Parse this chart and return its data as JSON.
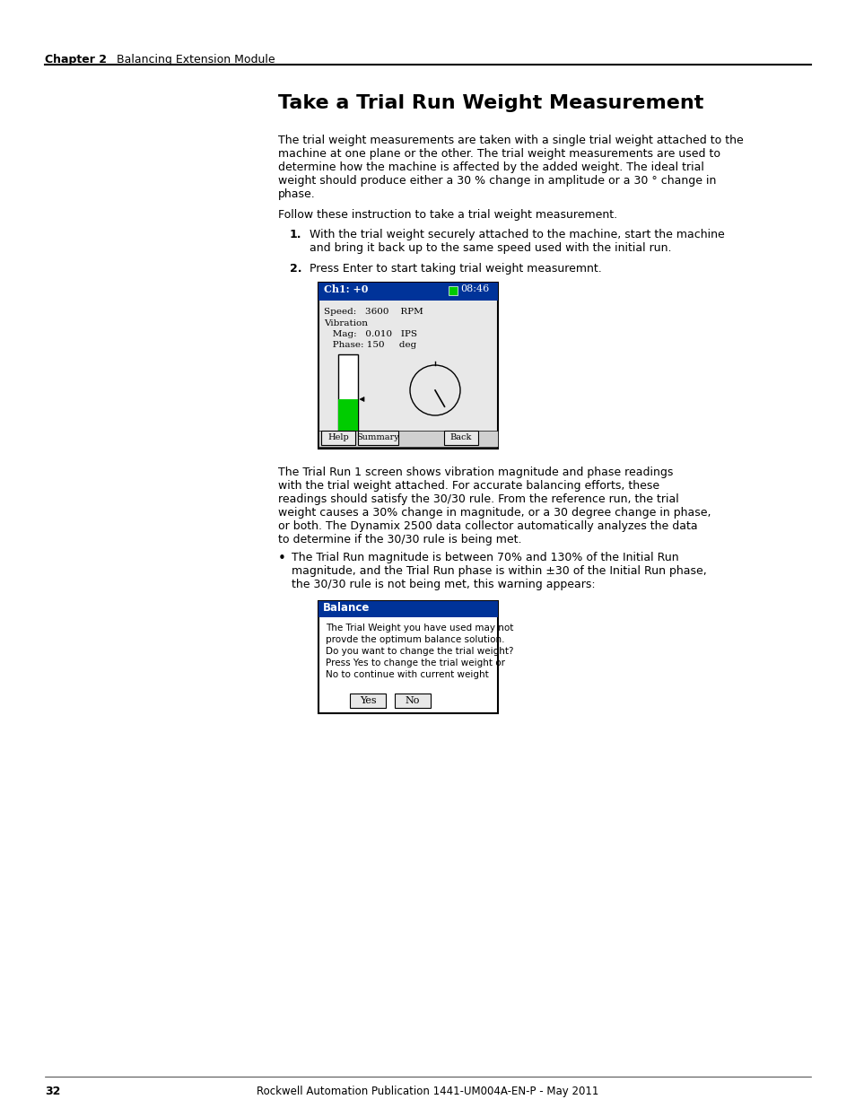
{
  "page_bg": "#ffffff",
  "chapter_label": "Chapter 2",
  "chapter_title": "Balancing Extension Module",
  "section_title": "Take a Trial Run Weight Measurement",
  "body_text_1": "The trial weight measurements are taken with a single trial weight attached to the\nmachine at one plane or the other. The trial weight measurements are used to\ndetermine how the machine is affected by the added weight. The ideal trial\nweight should produce either a 30 % change in amplitude or a 30 ° change in\nphase.",
  "body_text_2": "Follow these instruction to take a trial weight measurement.",
  "step1": "With the trial weight securely attached to the machine, start the machine\nand bring it back up to the same speed used with the initial run.",
  "step2": "Press Enter to start taking trial weight measuremnt.",
  "screen1_title": "Ch1: +0",
  "screen1_time": "08:46",
  "screen1_speed": "Speed:   3600    RPM",
  "screen1_vib": "Vibration",
  "screen1_mag": "   Mag:   0.010   IPS",
  "screen1_phase": "   Phase: 150     deg",
  "screen1_btn1": "Help",
  "screen1_btn2": "Summary",
  "screen1_btn3": "Back",
  "body_text_3": "The Trial Run 1 screen shows vibration magnitude and phase readings\nwith the trial weight attached. For accurate balancing efforts, these\nreadings should satisfy the 30/30 rule. From the reference run, the trial\nweight causes a 30% change in magnitude, or a 30 degree change in phase,\nor both. The Dynamix 2500 data collector automatically analyzes the data\nto determine if the 30/30 rule is being met.",
  "bullet_text": "The Trial Run magnitude is between 70% and 130% of the Initial Run\nmagnitude, and the Trial Run phase is within ±30 of the Initial Run phase,\nthe 30/30 rule is not being met, this warning appears:",
  "dialog_title": "Balance",
  "dialog_text": "The Trial Weight you have used may not\nprovde the optimum balance solution.\nDo you want to change the trial weight?\nPress Yes to change the trial weight or\nNo to continue with current weight",
  "dialog_btn1": "Yes",
  "dialog_btn2": "No",
  "footer_text": "Rockwell Automation Publication 1441-UM004A-EN-P - May 2011",
  "page_number": "32",
  "header_bg": "#003399",
  "dialog_header_bg": "#003399",
  "green_bar": "#00cc00",
  "text_color": "#000000",
  "header_text_color": "#ffffff"
}
